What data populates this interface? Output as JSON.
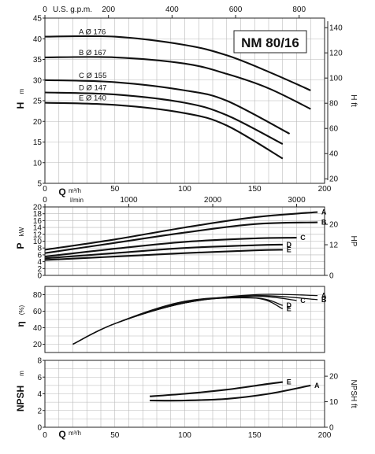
{
  "chart_data": {
    "type": "line",
    "model": "NM 80/16",
    "x_axis": {
      "label": "Q",
      "unit": "m³/h",
      "range": [
        0,
        200
      ],
      "ticks": [
        "0",
        "50",
        "100",
        "150",
        "200"
      ]
    },
    "top_axis": {
      "label": "U.S. g.p.m.",
      "range": [
        0,
        880
      ],
      "ticks": [
        "0",
        "200",
        "400",
        "600",
        "800"
      ]
    },
    "lmin_axis": {
      "label": "l/min",
      "range": [
        0,
        3333
      ],
      "ticks": [
        "0",
        "1000",
        "2000",
        "3000"
      ]
    },
    "panels": [
      {
        "id": "head",
        "ylabel": "H",
        "yunit": "m",
        "ylim": [
          5,
          45
        ],
        "yticks": [
          "5",
          "10",
          "15",
          "20",
          "25",
          "30",
          "35",
          "40",
          "45"
        ],
        "right": {
          "label": "H ft",
          "ticks": [
            "20",
            "40",
            "60",
            "80",
            "100",
            "120",
            "140"
          ],
          "range": [
            16.4,
            147.6
          ]
        },
        "series": [
          {
            "name": "A",
            "label": "A Ø 176",
            "x": [
              0,
              50,
              100,
              130,
              160,
              190
            ],
            "values": [
              40.5,
              40.5,
              38.5,
              36,
              32,
              27.5
            ]
          },
          {
            "name": "B",
            "label": "B Ø 167",
            "x": [
              0,
              50,
              100,
              130,
              160,
              190
            ],
            "values": [
              35.5,
              35.5,
              34,
              31.5,
              28,
              23
            ]
          },
          {
            "name": "C",
            "label": "C Ø 155",
            "x": [
              0,
              50,
              100,
              130,
              175
            ],
            "values": [
              30,
              29.5,
              27.5,
              25,
              17
            ]
          },
          {
            "name": "D",
            "label": "D Ø 147",
            "x": [
              0,
              50,
              100,
              130,
              170
            ],
            "values": [
              27,
              26.5,
              24.5,
              21.5,
              14.5
            ]
          },
          {
            "name": "E",
            "label": "E Ø 140",
            "x": [
              0,
              50,
              100,
              130,
              170
            ],
            "values": [
              24.5,
              24,
              22,
              19,
              11
            ]
          }
        ]
      },
      {
        "id": "power",
        "ylabel": "P",
        "yunit": "kW",
        "ylim": [
          0,
          20
        ],
        "yticks": [
          "0",
          "2",
          "4",
          "6",
          "8",
          "10",
          "12",
          "14",
          "16",
          "18",
          "20"
        ],
        "right": {
          "label": "HP",
          "ticks": [
            "0",
            "12",
            "20"
          ],
          "range": [
            0,
            26.8
          ]
        },
        "series": [
          {
            "name": "A",
            "x": [
              0,
              50,
              100,
              150,
              195
            ],
            "values": [
              7.5,
              10.5,
              14,
              17,
              18.5
            ]
          },
          {
            "name": "B",
            "x": [
              0,
              50,
              100,
              150,
              195
            ],
            "values": [
              6.5,
              9.5,
              12.5,
              15,
              15.5
            ]
          },
          {
            "name": "C",
            "x": [
              0,
              50,
              100,
              150,
              180
            ],
            "values": [
              5.5,
              7.8,
              9.8,
              10.8,
              11
            ]
          },
          {
            "name": "D",
            "x": [
              0,
              50,
              100,
              150,
              170
            ],
            "values": [
              5,
              6.5,
              8,
              8.8,
              9
            ]
          },
          {
            "name": "E",
            "x": [
              0,
              50,
              100,
              150,
              170
            ],
            "values": [
              4.5,
              5.5,
              6.5,
              7.3,
              7.5
            ]
          }
        ]
      },
      {
        "id": "efficiency",
        "ylabel": "η",
        "yunit": "(%)",
        "ylim": [
          10,
          90
        ],
        "yticks": [
          "20",
          "40",
          "60",
          "80"
        ],
        "series": [
          {
            "name": "A",
            "x": [
              20,
              50,
              100,
              150,
              195
            ],
            "values": [
              20,
              45,
              70,
              80,
              79
            ]
          },
          {
            "name": "B",
            "x": [
              20,
              50,
              100,
              150,
              195
            ],
            "values": [
              20,
              45,
              70,
              79,
              74
            ]
          },
          {
            "name": "C",
            "x": [
              20,
              50,
              100,
              150,
              180
            ],
            "values": [
              20,
              45,
              70,
              78,
              73
            ]
          },
          {
            "name": "D",
            "x": [
              20,
              50,
              100,
              150,
              170
            ],
            "values": [
              20,
              45,
              71,
              76,
              67
            ]
          },
          {
            "name": "E",
            "x": [
              20,
              50,
              100,
              150,
              170
            ],
            "values": [
              20,
              45,
              72,
              76,
              63
            ]
          }
        ]
      },
      {
        "id": "npsh",
        "ylabel": "NPSH",
        "yunit": "m",
        "ylim": [
          0,
          8
        ],
        "yticks": [
          "0",
          "2",
          "4",
          "6",
          "8"
        ],
        "right": {
          "label": "NPSH ft",
          "ticks": [
            "0",
            "10",
            "20"
          ],
          "range": [
            0,
            26.2
          ]
        },
        "series": [
          {
            "name": "A",
            "x": [
              75,
              100,
              130,
              160,
              190
            ],
            "values": [
              3.2,
              3.2,
              3.4,
              4,
              5
            ]
          },
          {
            "name": "E",
            "x": [
              75,
              100,
              130,
              160,
              170
            ],
            "values": [
              3.7,
              4,
              4.5,
              5.2,
              5.4
            ]
          }
        ]
      }
    ],
    "grid": true
  }
}
